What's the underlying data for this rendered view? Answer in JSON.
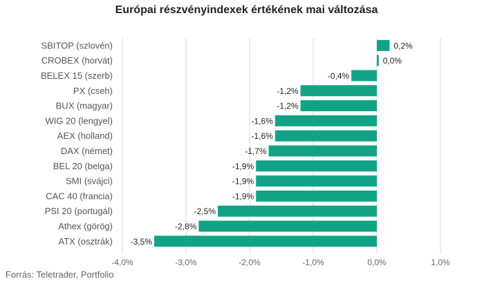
{
  "title": "Európai részvényindexek értékének mai változása",
  "source": "Forrás: Teletrader, Portfolio",
  "chart_data": {
    "type": "bar",
    "orientation": "horizontal",
    "title": "Európai részvényindexek értékének mai változása",
    "xlabel": "",
    "ylabel": "",
    "xlim": [
      -4.0,
      1.0
    ],
    "grid": true,
    "bar_color": "#12a386",
    "categories": [
      "SBITOP (szlovén)",
      "CROBEX (horvát)",
      "BELEX 15 (szerb)",
      "PX (cseh)",
      "BUX (magyar)",
      "WIG 20 (lengyel)",
      "AEX (holland)",
      "DAX (német)",
      "BEL 20 (belga)",
      "SMI (svájci)",
      "CAC 40 (francia)",
      "PSI 20 (portugál)",
      "Athex (görög)",
      "ATX (osztrák)"
    ],
    "values": [
      0.2,
      0.03,
      -0.4,
      -1.2,
      -1.2,
      -1.6,
      -1.6,
      -1.7,
      -1.9,
      -1.9,
      -1.9,
      -2.5,
      -2.8,
      -3.5
    ],
    "value_labels": [
      "0,2%",
      "0,0%",
      "-0,4%",
      "-1,2%",
      "-1,2%",
      "-1,6%",
      "-1,6%",
      "-1,7%",
      "-1,9%",
      "-1,9%",
      "-1,9%",
      "-2,5%",
      "-2,8%",
      "-3,5%"
    ],
    "ticks": [
      -4.0,
      -3.0,
      -2.0,
      -1.0,
      0.0,
      1.0
    ],
    "tick_labels": [
      "-4,0%",
      "-3,0%",
      "-2,0%",
      "-1,0%",
      "0,0%",
      "1,0%"
    ]
  }
}
